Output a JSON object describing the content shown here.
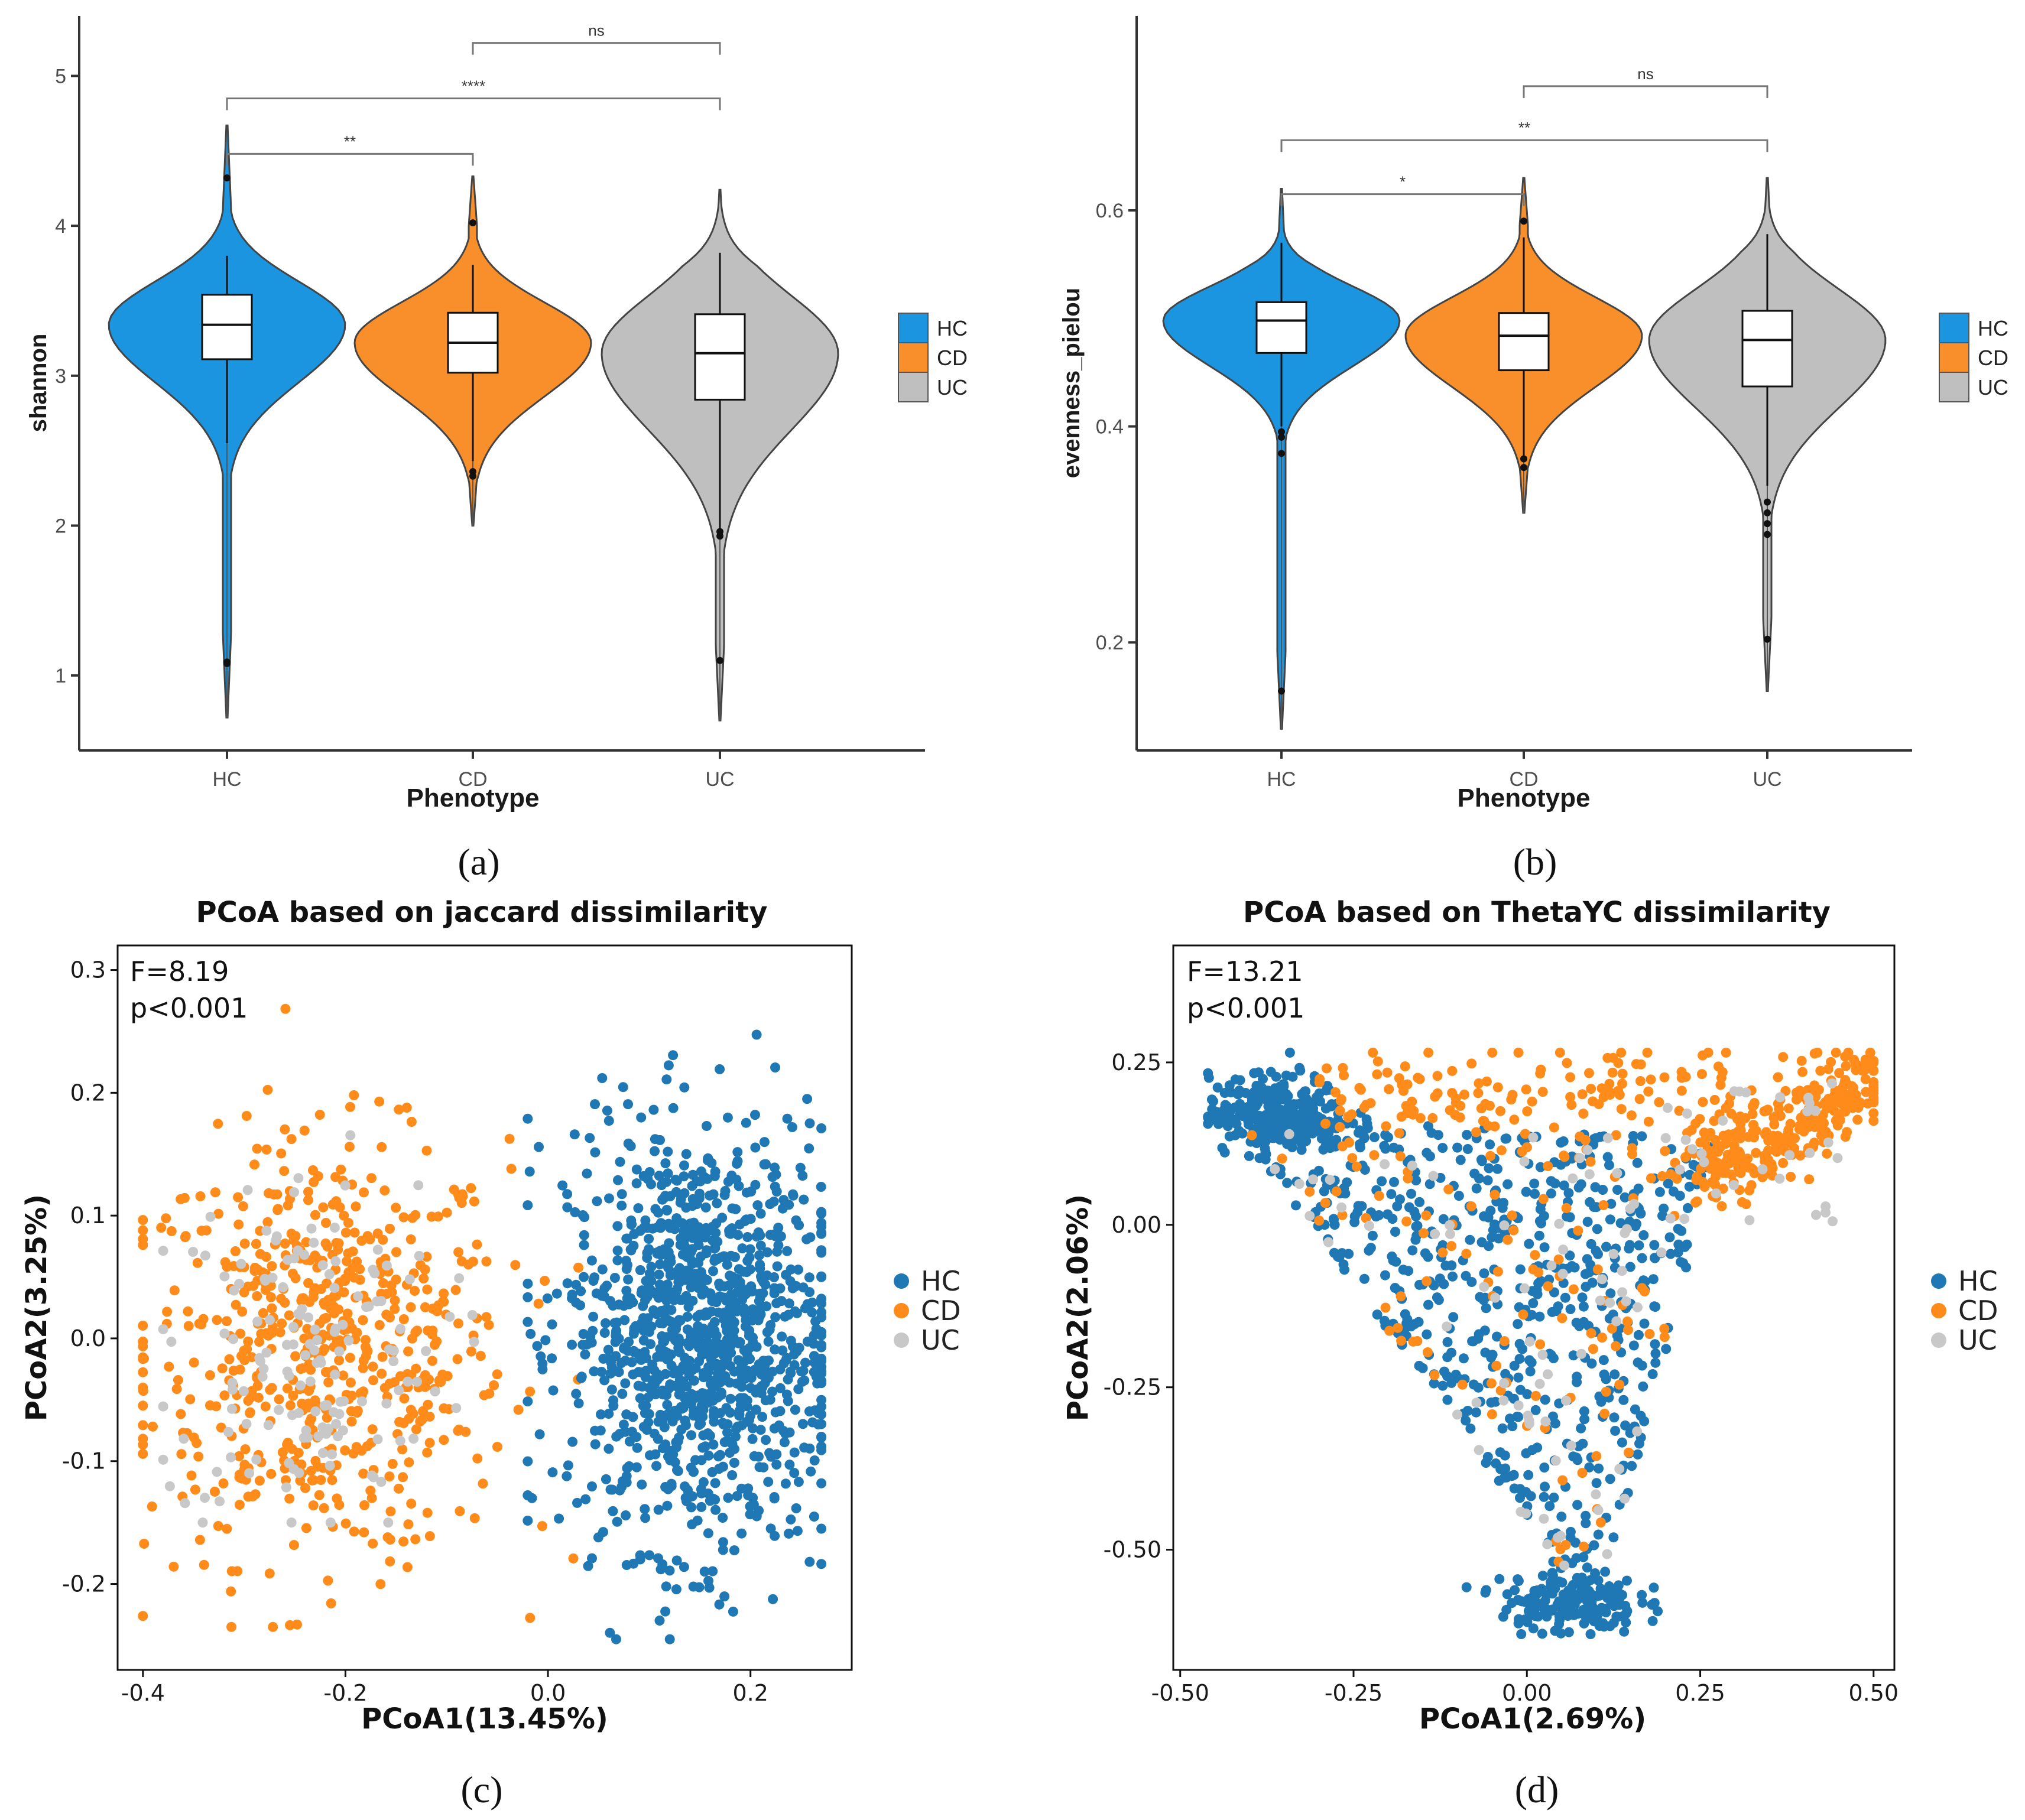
{
  "chart_data": [
    {
      "panel": "(a)",
      "type": "violin",
      "title": "",
      "xlabel": "Phenotype",
      "ylabel": "shannon",
      "categories": [
        "HC",
        "CD",
        "UC"
      ],
      "ylim": [
        0.5,
        5.4
      ],
      "yticks": [
        1,
        2,
        3,
        4,
        5
      ],
      "series": [
        {
          "name": "HC",
          "color": "#1b95e0",
          "min": 0.72,
          "max": 4.67,
          "q1": 3.11,
          "median": 3.34,
          "q3": 3.54,
          "whisker_low": 2.55,
          "whisker_high": 3.8,
          "outliers": [
            4.32,
            1.09,
            1.08
          ]
        },
        {
          "name": "CD",
          "color": "#f98f2a",
          "min": 2.0,
          "max": 4.33,
          "q1": 3.02,
          "median": 3.22,
          "q3": 3.42,
          "whisker_low": 2.43,
          "whisker_high": 3.74,
          "outliers": [
            4.02,
            2.36,
            2.33
          ]
        },
        {
          "name": "UC",
          "color": "#bfbfbf",
          "min": 0.7,
          "max": 4.24,
          "q1": 2.84,
          "median": 3.15,
          "q3": 3.41,
          "whisker_low": 1.98,
          "whisker_high": 3.82,
          "outliers": [
            1.96,
            1.93,
            1.1
          ]
        }
      ],
      "significance": [
        {
          "from": "HC",
          "to": "CD",
          "label": "**",
          "y": 4.48
        },
        {
          "from": "HC",
          "to": "UC",
          "label": "****",
          "y": 4.85
        },
        {
          "from": "CD",
          "to": "UC",
          "label": "ns",
          "y": 5.22
        }
      ],
      "legend": [
        "HC",
        "CD",
        "UC"
      ],
      "legend_position": "right"
    },
    {
      "panel": "(b)",
      "type": "violin",
      "title": "",
      "xlabel": "Phenotype",
      "ylabel": "evenness_pielou",
      "categories": [
        "HC",
        "CD",
        "UC"
      ],
      "ylim": [
        0.1,
        0.78
      ],
      "yticks": [
        0.2,
        0.4,
        0.6
      ],
      "series": [
        {
          "name": "HC",
          "color": "#1b95e0",
          "min": 0.12,
          "max": 0.62,
          "q1": 0.468,
          "median": 0.498,
          "q3": 0.515,
          "whisker_low": 0.4,
          "whisker_high": 0.57,
          "outliers": [
            0.395,
            0.39,
            0.375,
            0.155
          ]
        },
        {
          "name": "CD",
          "color": "#f98f2a",
          "min": 0.32,
          "max": 0.63,
          "q1": 0.452,
          "median": 0.484,
          "q3": 0.505,
          "whisker_low": 0.37,
          "whisker_high": 0.575,
          "outliers": [
            0.59,
            0.37,
            0.362
          ]
        },
        {
          "name": "UC",
          "color": "#bfbfbf",
          "min": 0.155,
          "max": 0.63,
          "q1": 0.437,
          "median": 0.48,
          "q3": 0.507,
          "whisker_low": 0.345,
          "whisker_high": 0.578,
          "outliers": [
            0.33,
            0.32,
            0.31,
            0.3,
            0.203
          ]
        }
      ],
      "significance": [
        {
          "from": "HC",
          "to": "CD",
          "label": "*",
          "y": 0.615
        },
        {
          "from": "HC",
          "to": "UC",
          "label": "**",
          "y": 0.665
        },
        {
          "from": "CD",
          "to": "UC",
          "label": "ns",
          "y": 0.715
        }
      ],
      "legend": [
        "HC",
        "CD",
        "UC"
      ],
      "legend_position": "right"
    },
    {
      "panel": "(c)",
      "type": "scatter",
      "title": "PCoA based on jaccard dissimilarity",
      "xlabel": "PCoA1(13.45%)",
      "ylabel": "PCoA2(3.25%)",
      "xlim": [
        -0.425,
        0.3
      ],
      "ylim": [
        -0.27,
        0.32
      ],
      "xticks": [
        -0.4,
        -0.2,
        0.0,
        0.2
      ],
      "xtick_labels": [
        "-0.4",
        "-0.2",
        "0.0",
        "0.2"
      ],
      "yticks": [
        -0.2,
        -0.1,
        0.0,
        0.1,
        0.2,
        0.3
      ],
      "ytick_labels": [
        "-0.2",
        "-0.1",
        "0.0",
        "0.1",
        "0.2",
        "0.3"
      ],
      "annotation": [
        "F=8.19",
        "p<0.001"
      ],
      "series": [
        {
          "name": "HC",
          "color": "#1f77b4",
          "n": 1150,
          "center": [
            0.15,
            0.0
          ],
          "spread": [
            0.065,
            0.085
          ],
          "x_range": [
            -0.02,
            0.27
          ],
          "y_range": [
            -0.245,
            0.27
          ]
        },
        {
          "name": "CD",
          "color": "#ff8c1a",
          "n": 620,
          "center": [
            -0.22,
            -0.01
          ],
          "spread": [
            0.09,
            0.085
          ],
          "x_range": [
            -0.4,
            0.03
          ],
          "y_range": [
            -0.235,
            0.275
          ]
        },
        {
          "name": "UC",
          "color": "#c8c8c8",
          "n": 150,
          "center": [
            -0.24,
            -0.01
          ],
          "spread": [
            0.07,
            0.075
          ],
          "x_range": [
            -0.38,
            -0.05
          ],
          "y_range": [
            -0.15,
            0.2
          ]
        }
      ],
      "legend": [
        "HC",
        "CD",
        "UC"
      ],
      "legend_position": "right"
    },
    {
      "panel": "(d)",
      "type": "scatter",
      "title": "PCoA based on ThetaYC dissimilarity",
      "xlabel": "PCoA1(2.69%)",
      "ylabel": "PCoA2(2.06%)",
      "xlim": [
        -0.51,
        0.53
      ],
      "ylim": [
        -0.685,
        0.43
      ],
      "xticks": [
        -0.5,
        -0.25,
        0.0,
        0.25,
        0.5
      ],
      "xtick_labels": [
        "-0.50",
        "-0.25",
        "0.00",
        "0.25",
        "0.50"
      ],
      "yticks": [
        -0.5,
        -0.25,
        0.0,
        0.25
      ],
      "ytick_labels": [
        "-0.50",
        "-0.25",
        "0.00",
        "0.25"
      ],
      "annotation": [
        "F=13.21",
        "p<0.001"
      ],
      "series": [
        {
          "name": "HC",
          "color": "#1f77b4",
          "n": 1050,
          "shape": "triangle",
          "x_range": [
            -0.45,
            0.45
          ],
          "y_range": [
            -0.63,
            0.25
          ]
        },
        {
          "name": "CD",
          "color": "#ff8c1a",
          "n": 560,
          "shape": "upper-right band",
          "x_range": [
            -0.4,
            0.5
          ],
          "y_range": [
            -0.6,
            0.265
          ]
        },
        {
          "name": "UC",
          "color": "#c8c8c8",
          "n": 110,
          "shape": "mixed",
          "x_range": [
            -0.35,
            0.45
          ],
          "y_range": [
            -0.45,
            0.26
          ]
        }
      ],
      "legend": [
        "HC",
        "CD",
        "UC"
      ],
      "legend_position": "right"
    }
  ]
}
